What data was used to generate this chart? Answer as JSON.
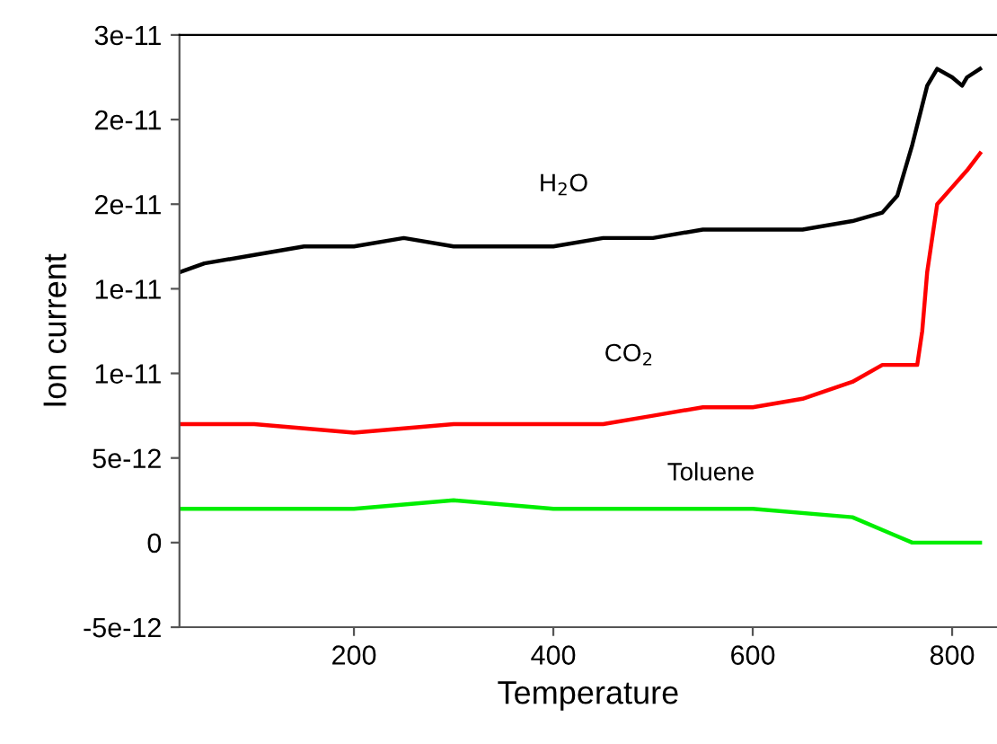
{
  "chart_data": {
    "type": "line",
    "xlabel": "Temperature",
    "ylabel": "Ion current",
    "xlim": [
      25,
      845
    ],
    "xticks": [
      200,
      400,
      600,
      800
    ],
    "ylim": [
      -5e-12,
      3e-11
    ],
    "yticks": [
      -5e-12,
      0,
      5e-12,
      1e-11,
      {
        "value": 1.5e-11,
        "label": "1e-11"
      },
      2e-11,
      {
        "value": 2.5e-11,
        "label": "2e-11"
      },
      3e-11
    ],
    "grid": false,
    "legend": false,
    "marker": "none",
    "line_style": "solid",
    "series": [
      {
        "name": "H$_{2}$O",
        "color": "#000000",
        "x": [
          26,
          50,
          100,
          150,
          200,
          250,
          300,
          350,
          400,
          450,
          500,
          550,
          600,
          650,
          700,
          730,
          745,
          760,
          775,
          785,
          800,
          810,
          815,
          828
        ],
        "values": [
          1.6e-11,
          1.65e-11,
          1.7e-11,
          1.75e-11,
          1.75e-11,
          1.8e-11,
          1.75e-11,
          1.75e-11,
          1.75e-11,
          1.8e-11,
          1.8e-11,
          1.85e-11,
          1.85e-11,
          1.85e-11,
          1.9e-11,
          1.95e-11,
          2.05e-11,
          2.35e-11,
          2.7e-11,
          2.8e-11,
          2.75e-11,
          2.7e-11,
          2.75e-11,
          2.8e-11
        ]
      },
      {
        "name": "CO$_{2}$",
        "color": "#ff0000",
        "x": [
          26,
          100,
          200,
          300,
          400,
          450,
          500,
          550,
          600,
          650,
          700,
          730,
          750,
          765,
          770,
          775,
          785,
          800,
          815,
          828
        ],
        "values": [
          7e-12,
          7e-12,
          6.5e-12,
          7e-12,
          7e-12,
          7e-12,
          7.5e-12,
          8e-12,
          8e-12,
          8.5e-12,
          9.5e-12,
          1.05e-11,
          1.05e-11,
          1.05e-11,
          1.25e-11,
          1.6e-11,
          2e-11,
          2.1e-11,
          2.2e-11,
          2.3e-11
        ]
      },
      {
        "name": "Toluene",
        "color": "#00ee00",
        "x": [
          26,
          200,
          300,
          400,
          500,
          600,
          700,
          740,
          760,
          828
        ],
        "values": [
          2e-12,
          2e-12,
          2.5e-12,
          2e-12,
          2e-12,
          2e-12,
          1.5e-12,
          5e-13,
          0,
          0
        ]
      }
    ]
  }
}
